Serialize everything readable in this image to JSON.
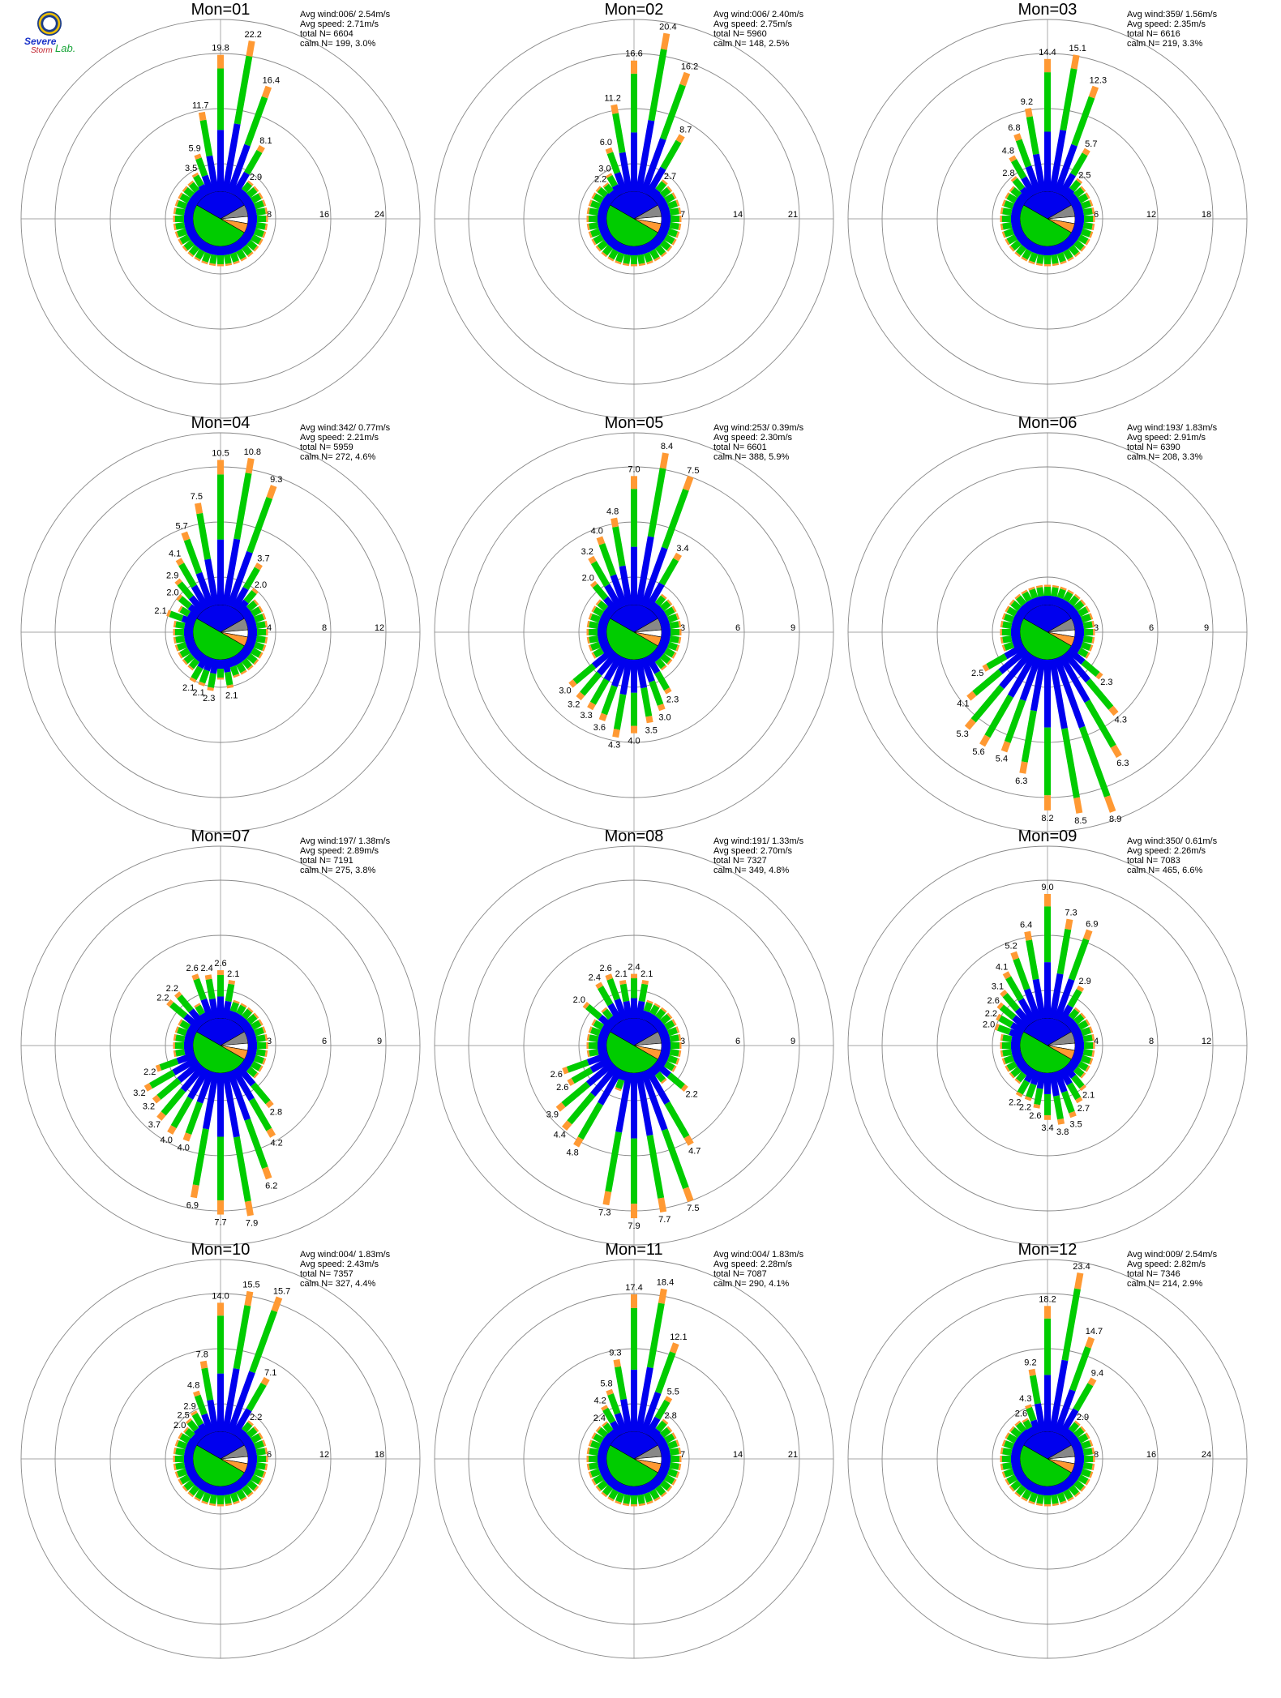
{
  "logo": {
    "line1": "Severe",
    "line2": "Storm",
    "line3": "Lab."
  },
  "colors": {
    "blue": "#0000ee",
    "green": "#00cc00",
    "orange": "#ff9933",
    "red": "#ee0000",
    "gray": "#888888",
    "white": "#ffffff",
    "circle": "#888888"
  },
  "panels": [
    {
      "title": "Mon=01",
      "info": [
        "Avg wind:006/ 2.54m/s",
        "Avg speed: 2.71m/s",
        "total N=      6604",
        "calm N=    199,   3.0%"
      ],
      "rings": [
        "8",
        "16",
        "24"
      ],
      "rmax": 24,
      "labels": [
        {
          "dir": 0,
          "text": "19.8"
        },
        {
          "dir": 10,
          "text": "22.2"
        },
        {
          "dir": 20,
          "text": "16.4"
        },
        {
          "dir": 30,
          "text": "8.1"
        },
        {
          "dir": 40,
          "text": "2.9"
        },
        {
          "dir": 350,
          "text": "11.7"
        },
        {
          "dir": 340,
          "text": "5.9"
        },
        {
          "dir": 330,
          "text": "3.5"
        }
      ]
    },
    {
      "title": "Mon=02",
      "info": [
        "Avg wind:006/ 2.40m/s",
        "Avg speed: 2.75m/s",
        "total N=      5960",
        "calm N=    148,   2.5%"
      ],
      "rings": [
        "7",
        "14",
        "21"
      ],
      "rmax": 21,
      "labels": [
        {
          "dir": 0,
          "text": "16.6"
        },
        {
          "dir": 10,
          "text": "20.4"
        },
        {
          "dir": 20,
          "text": "16.2"
        },
        {
          "dir": 30,
          "text": "8.7"
        },
        {
          "dir": 40,
          "text": "2.7"
        },
        {
          "dir": 350,
          "text": "11.2"
        },
        {
          "dir": 340,
          "text": "6.0"
        },
        {
          "dir": 330,
          "text": "3.0"
        },
        {
          "dir": 320,
          "text": "2.2"
        }
      ]
    },
    {
      "title": "Mon=03",
      "info": [
        "Avg wind:359/ 1.56m/s",
        "Avg speed: 2.35m/s",
        "total N=      6616",
        "calm N=    219,   3.3%"
      ],
      "rings": [
        "6",
        "12",
        "18"
      ],
      "rmax": 18,
      "labels": [
        {
          "dir": 0,
          "text": "14.4"
        },
        {
          "dir": 10,
          "text": "15.1"
        },
        {
          "dir": 20,
          "text": "12.3"
        },
        {
          "dir": 30,
          "text": "5.7"
        },
        {
          "dir": 40,
          "text": "2.5"
        },
        {
          "dir": 350,
          "text": "9.2"
        },
        {
          "dir": 340,
          "text": "6.8"
        },
        {
          "dir": 330,
          "text": "4.8"
        },
        {
          "dir": 320,
          "text": "2.8"
        }
      ]
    },
    {
      "title": "Mon=04",
      "info": [
        "Avg wind:342/ 0.77m/s",
        "Avg speed: 2.21m/s",
        "total N=      5959",
        "calm N=    272,   4.6%"
      ],
      "rings": [
        "4",
        "8",
        "12"
      ],
      "rmax": 12,
      "labels": [
        {
          "dir": 0,
          "text": "10.5"
        },
        {
          "dir": 10,
          "text": "10.8"
        },
        {
          "dir": 20,
          "text": "9.3"
        },
        {
          "dir": 30,
          "text": "3.7"
        },
        {
          "dir": 40,
          "text": "2.0"
        },
        {
          "dir": 350,
          "text": "7.5"
        },
        {
          "dir": 340,
          "text": "5.7"
        },
        {
          "dir": 330,
          "text": "4.1"
        },
        {
          "dir": 320,
          "text": "2.9"
        },
        {
          "dir": 310,
          "text": "2.0"
        },
        {
          "dir": 290,
          "text": "2.1"
        },
        {
          "dir": 170,
          "text": "2.1"
        },
        {
          "dir": 190,
          "text": "2.3"
        },
        {
          "dir": 200,
          "text": "2.1"
        },
        {
          "dir": 210,
          "text": "2.1"
        }
      ]
    },
    {
      "title": "Mon=05",
      "info": [
        "Avg wind:253/ 0.39m/s",
        "Avg speed: 2.30m/s",
        "total N=      6601",
        "calm N=    388,   5.9%"
      ],
      "rings": [
        "3",
        "6",
        "9"
      ],
      "rmax": 9,
      "labels": [
        {
          "dir": 0,
          "text": "7.0"
        },
        {
          "dir": 10,
          "text": "8.4"
        },
        {
          "dir": 20,
          "text": "7.5"
        },
        {
          "dir": 30,
          "text": "3.4"
        },
        {
          "dir": 350,
          "text": "4.8"
        },
        {
          "dir": 340,
          "text": "4.0"
        },
        {
          "dir": 330,
          "text": "3.2"
        },
        {
          "dir": 320,
          "text": "2.0"
        },
        {
          "dir": 150,
          "text": "2.3"
        },
        {
          "dir": 160,
          "text": "3.0"
        },
        {
          "dir": 170,
          "text": "3.5"
        },
        {
          "dir": 180,
          "text": "4.0"
        },
        {
          "dir": 190,
          "text": "4.3"
        },
        {
          "dir": 200,
          "text": "3.6"
        },
        {
          "dir": 210,
          "text": "3.3"
        },
        {
          "dir": 220,
          "text": "3.2"
        },
        {
          "dir": 230,
          "text": "3.0"
        }
      ]
    },
    {
      "title": "Mon=06",
      "info": [
        "Avg wind:193/ 1.83m/s",
        "Avg speed: 2.91m/s",
        "total N=      6390",
        "calm N=    208,   3.3%"
      ],
      "rings": [
        "3",
        "6",
        "9"
      ],
      "rmax": 9,
      "labels": [
        {
          "dir": 130,
          "text": "2.3"
        },
        {
          "dir": 140,
          "text": "4.3"
        },
        {
          "dir": 150,
          "text": "6.3"
        },
        {
          "dir": 160,
          "text": "8.9"
        },
        {
          "dir": 170,
          "text": "8.5"
        },
        {
          "dir": 180,
          "text": "8.2"
        },
        {
          "dir": 190,
          "text": "6.3"
        },
        {
          "dir": 200,
          "text": "5.4"
        },
        {
          "dir": 210,
          "text": "5.6"
        },
        {
          "dir": 220,
          "text": "5.3"
        },
        {
          "dir": 230,
          "text": "4.1"
        },
        {
          "dir": 240,
          "text": "2.5"
        }
      ]
    },
    {
      "title": "Mon=07",
      "info": [
        "Avg wind:197/ 1.38m/s",
        "Avg speed: 2.89m/s",
        "total N=      7191",
        "calm N=    275,   3.8%"
      ],
      "rings": [
        "3",
        "6",
        "9"
      ],
      "rmax": 9,
      "labels": [
        {
          "dir": 0,
          "text": "2.6"
        },
        {
          "dir": 10,
          "text": "2.1"
        },
        {
          "dir": 350,
          "text": "2.4"
        },
        {
          "dir": 340,
          "text": "2.6"
        },
        {
          "dir": 320,
          "text": "2.2"
        },
        {
          "dir": 310,
          "text": "2.2"
        },
        {
          "dir": 140,
          "text": "2.8"
        },
        {
          "dir": 150,
          "text": "4.2"
        },
        {
          "dir": 160,
          "text": "6.2"
        },
        {
          "dir": 170,
          "text": "7.9"
        },
        {
          "dir": 180,
          "text": "7.7"
        },
        {
          "dir": 190,
          "text": "6.9"
        },
        {
          "dir": 200,
          "text": "4.0"
        },
        {
          "dir": 210,
          "text": "4.0"
        },
        {
          "dir": 220,
          "text": "3.7"
        },
        {
          "dir": 230,
          "text": "3.2"
        },
        {
          "dir": 240,
          "text": "3.2"
        },
        {
          "dir": 250,
          "text": "2.2"
        }
      ]
    },
    {
      "title": "Mon=08",
      "info": [
        "Avg wind:191/ 1.33m/s",
        "Avg speed: 2.70m/s",
        "total N=      7327",
        "calm N=    349,   4.8%"
      ],
      "rings": [
        "3",
        "6",
        "9"
      ],
      "rmax": 9,
      "labels": [
        {
          "dir": 0,
          "text": "2.4"
        },
        {
          "dir": 10,
          "text": "2.1"
        },
        {
          "dir": 350,
          "text": "2.1"
        },
        {
          "dir": 340,
          "text": "2.6"
        },
        {
          "dir": 330,
          "text": "2.4"
        },
        {
          "dir": 310,
          "text": "2.0"
        },
        {
          "dir": 130,
          "text": "2.2"
        },
        {
          "dir": 150,
          "text": "4.7"
        },
        {
          "dir": 160,
          "text": "7.5"
        },
        {
          "dir": 170,
          "text": "7.7"
        },
        {
          "dir": 180,
          "text": "7.9"
        },
        {
          "dir": 190,
          "text": "7.3"
        },
        {
          "dir": 210,
          "text": "4.8"
        },
        {
          "dir": 220,
          "text": "4.4"
        },
        {
          "dir": 230,
          "text": "3.9"
        },
        {
          "dir": 240,
          "text": "2.6"
        },
        {
          "dir": 250,
          "text": "2.6"
        }
      ]
    },
    {
      "title": "Mon=09",
      "info": [
        "Avg wind:350/ 0.61m/s",
        "Avg speed: 2.26m/s",
        "total N=      7083",
        "calm N=    465,   6.6%"
      ],
      "rings": [
        "4",
        "8",
        "12"
      ],
      "rmax": 12,
      "labels": [
        {
          "dir": 0,
          "text": "9.0"
        },
        {
          "dir": 10,
          "text": "7.3"
        },
        {
          "dir": 20,
          "text": "6.9"
        },
        {
          "dir": 30,
          "text": "2.9"
        },
        {
          "dir": 350,
          "text": "6.4"
        },
        {
          "dir": 340,
          "text": "5.2"
        },
        {
          "dir": 330,
          "text": "4.1"
        },
        {
          "dir": 320,
          "text": "3.1"
        },
        {
          "dir": 310,
          "text": "2.6"
        },
        {
          "dir": 300,
          "text": "2.2"
        },
        {
          "dir": 290,
          "text": "2.0"
        },
        {
          "dir": 140,
          "text": "2.1"
        },
        {
          "dir": 150,
          "text": "2.7"
        },
        {
          "dir": 160,
          "text": "3.5"
        },
        {
          "dir": 170,
          "text": "3.8"
        },
        {
          "dir": 180,
          "text": "3.4"
        },
        {
          "dir": 190,
          "text": "2.6"
        },
        {
          "dir": 200,
          "text": "2.2"
        },
        {
          "dir": 210,
          "text": "2.2"
        }
      ]
    },
    {
      "title": "Mon=10",
      "info": [
        "Avg wind:004/ 1.83m/s",
        "Avg speed: 2.43m/s",
        "total N=      7357",
        "calm N=    327,   4.4%"
      ],
      "rings": [
        "6",
        "12",
        "18"
      ],
      "rmax": 18,
      "labels": [
        {
          "dir": 0,
          "text": "14.0"
        },
        {
          "dir": 10,
          "text": "15.5"
        },
        {
          "dir": 20,
          "text": "15.7"
        },
        {
          "dir": 30,
          "text": "7.1"
        },
        {
          "dir": 40,
          "text": "2.2"
        },
        {
          "dir": 350,
          "text": "7.8"
        },
        {
          "dir": 340,
          "text": "4.8"
        },
        {
          "dir": 330,
          "text": "2.9"
        },
        {
          "dir": 320,
          "text": "2.5"
        },
        {
          "dir": 310,
          "text": "2.0"
        }
      ]
    },
    {
      "title": "Mon=11",
      "info": [
        "Avg wind:004/ 1.83m/s",
        "Avg speed: 2.28m/s",
        "total N=      7087",
        "calm N=    290,   4.1%"
      ],
      "rings": [
        "7",
        "14",
        "21"
      ],
      "rmax": 21,
      "labels": [
        {
          "dir": 0,
          "text": "17.4"
        },
        {
          "dir": 10,
          "text": "18.4"
        },
        {
          "dir": 20,
          "text": "12.1"
        },
        {
          "dir": 30,
          "text": "5.5"
        },
        {
          "dir": 40,
          "text": "2.8"
        },
        {
          "dir": 350,
          "text": "9.3"
        },
        {
          "dir": 340,
          "text": "5.8"
        },
        {
          "dir": 330,
          "text": "4.2"
        },
        {
          "dir": 320,
          "text": "2.4"
        }
      ]
    },
    {
      "title": "Mon=12",
      "info": [
        "Avg wind:009/ 2.54m/s",
        "Avg speed: 2.82m/s",
        "total N=      7346",
        "calm N=    214,   2.9%"
      ],
      "rings": [
        "8",
        "16",
        "24"
      ],
      "rmax": 24,
      "labels": [
        {
          "dir": 0,
          "text": "18.2"
        },
        {
          "dir": 10,
          "text": "23.4"
        },
        {
          "dir": 20,
          "text": "14.7"
        },
        {
          "dir": 30,
          "text": "9.4"
        },
        {
          "dir": 40,
          "text": "2.9"
        },
        {
          "dir": 350,
          "text": "9.2"
        },
        {
          "dir": 340,
          "text": "4.3"
        },
        {
          "dir": 330,
          "text": "2.6"
        }
      ]
    }
  ],
  "chart_data": []
}
